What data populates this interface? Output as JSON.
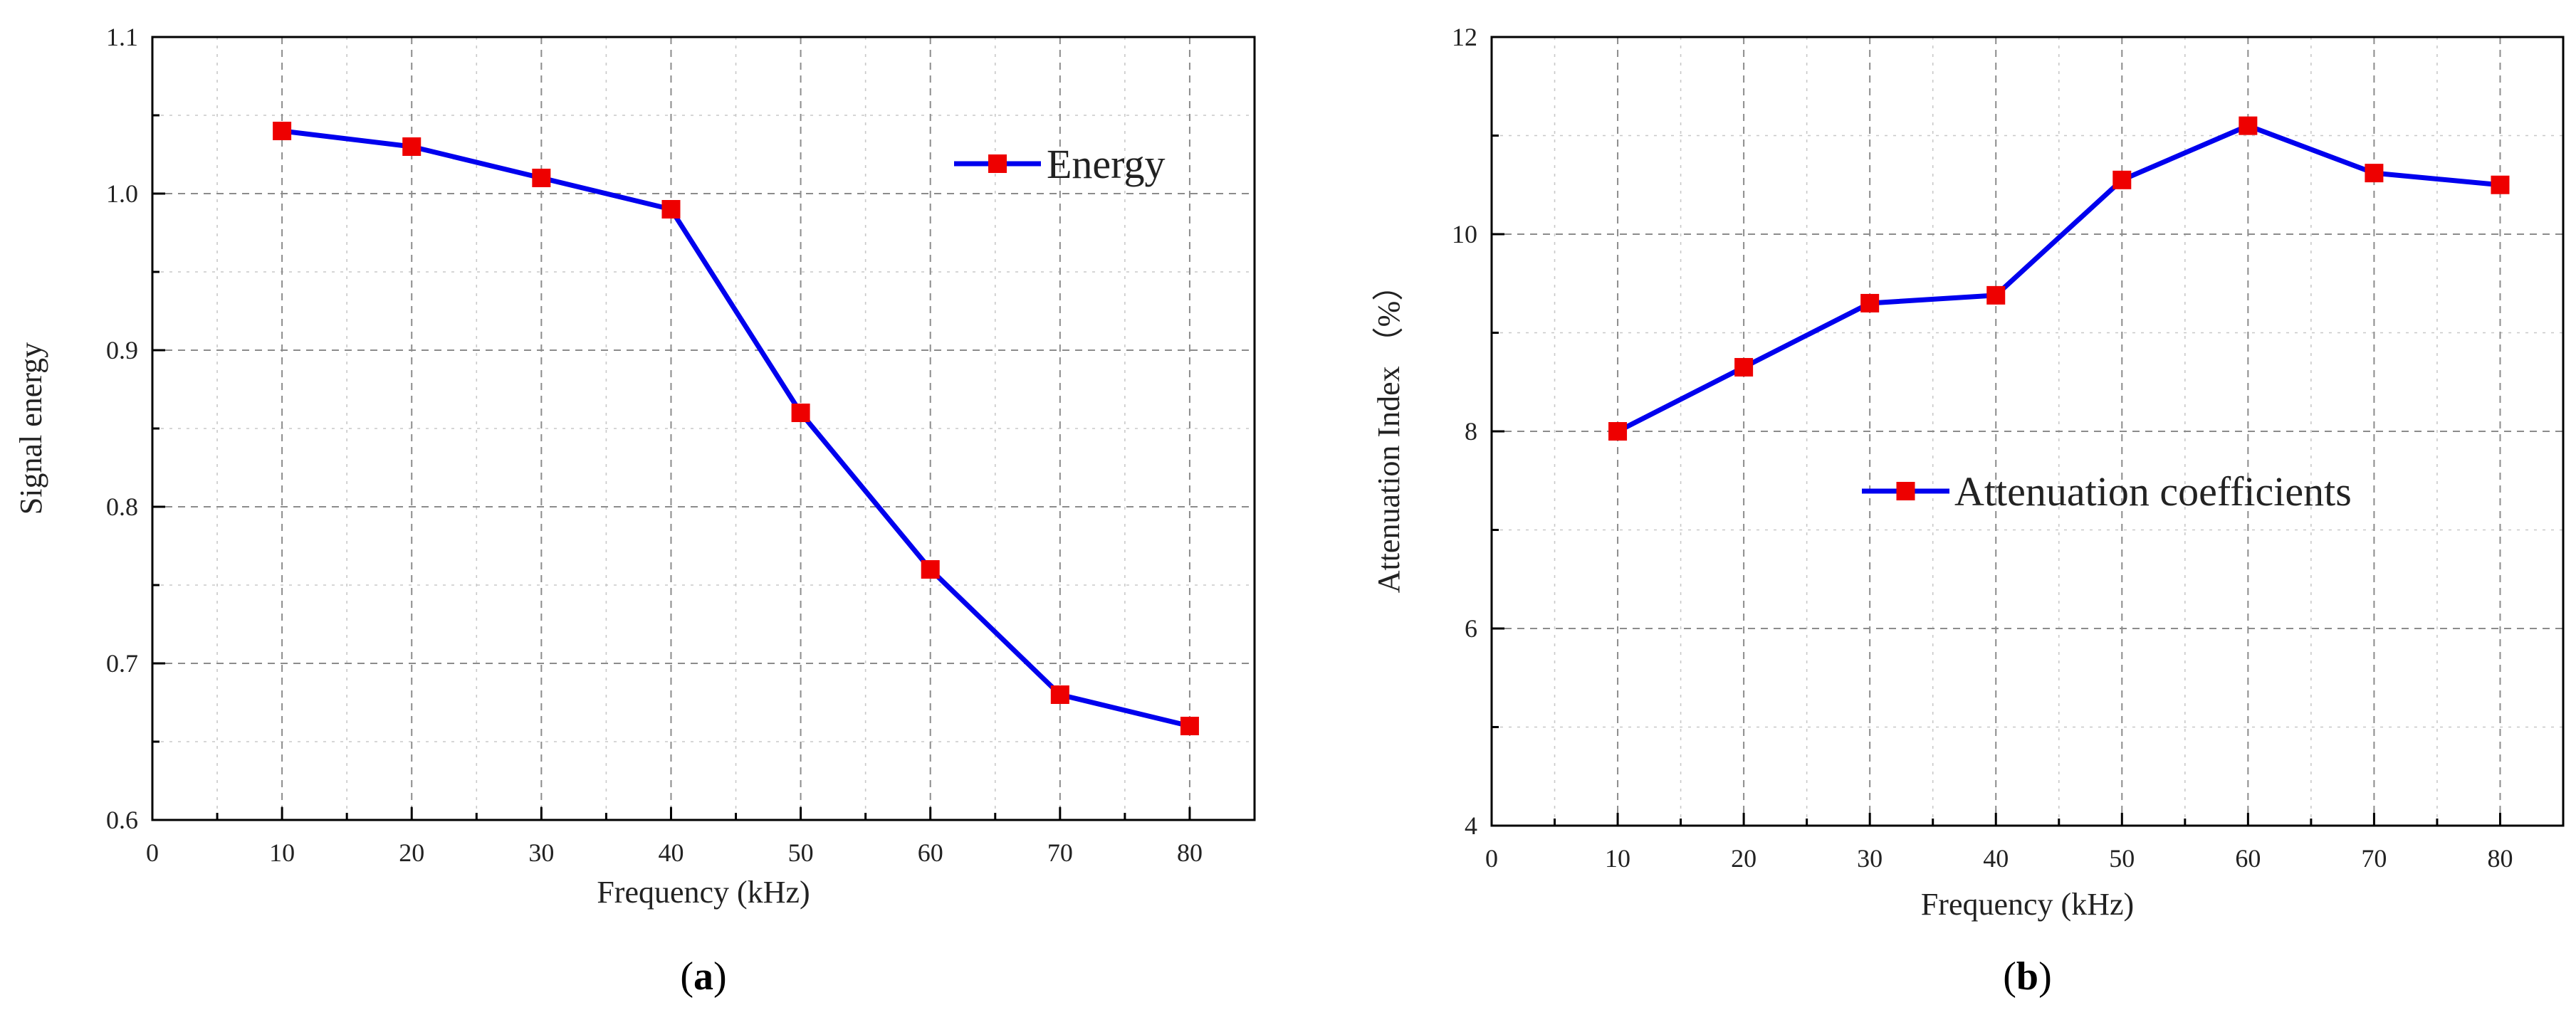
{
  "chart_data": [
    {
      "type": "line",
      "panel_label": "a",
      "title": "",
      "xlabel": "Frequency (kHz)",
      "ylabel": "Signal energy",
      "xlim": [
        0,
        85
      ],
      "ylim": [
        0.6,
        1.1
      ],
      "x_major_ticks": [
        0,
        10,
        20,
        30,
        40,
        50,
        60,
        70,
        80
      ],
      "x_minor_step": 5,
      "y_major_ticks": [
        0.6,
        0.7,
        0.8,
        0.9,
        1.0,
        1.1
      ],
      "y_minor_step": 0.05,
      "x_decimals": 0,
      "y_decimals": 1,
      "grid": true,
      "legend_position": "top-right",
      "series": [
        {
          "name": "Energy",
          "color": "#0000ee",
          "marker": "square",
          "marker_color": "#ee0000",
          "x": [
            10,
            20,
            30,
            40,
            50,
            60,
            70,
            80
          ],
          "y": [
            1.04,
            1.03,
            1.01,
            0.99,
            0.86,
            0.76,
            0.68,
            0.66
          ]
        }
      ]
    },
    {
      "type": "line",
      "panel_label": "b",
      "title": "",
      "xlabel": "Frequency (kHz)",
      "ylabel": "Attenuation Index （%）",
      "xlim": [
        0,
        85
      ],
      "ylim": [
        4,
        12
      ],
      "x_major_ticks": [
        0,
        10,
        20,
        30,
        40,
        50,
        60,
        70,
        80
      ],
      "x_minor_step": 5,
      "y_major_ticks": [
        4,
        6,
        8,
        10,
        12
      ],
      "y_minor_step": 1,
      "x_decimals": 0,
      "y_decimals": 0,
      "grid": true,
      "legend_position": "center-right",
      "series": [
        {
          "name": "Attenuation coefficients",
          "color": "#0000ee",
          "marker": "square",
          "marker_color": "#ee0000",
          "x": [
            10,
            20,
            30,
            40,
            50,
            60,
            70,
            80
          ],
          "y": [
            8.0,
            8.65,
            9.3,
            9.38,
            10.55,
            11.1,
            10.62,
            10.5
          ]
        }
      ]
    }
  ]
}
